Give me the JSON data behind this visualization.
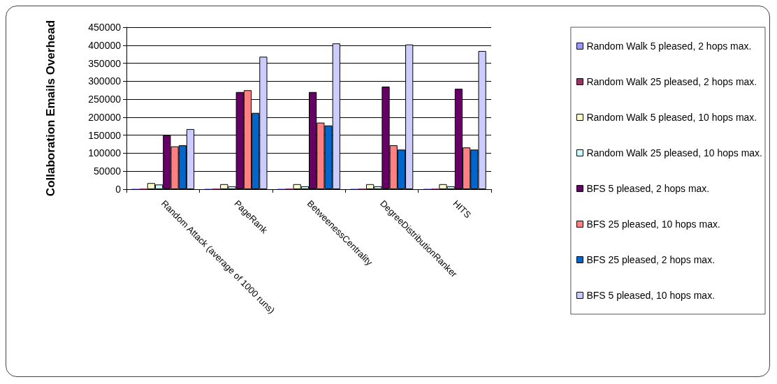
{
  "chart_data": {
    "type": "bar",
    "ylabel": "Collaboration Emails Overhead",
    "categories": [
      "Random Attack (average of 1000 runs)",
      "PageRank",
      "BetweenessCentrality",
      "DegreeDistributionRanker",
      "HITS"
    ],
    "series": [
      {
        "name": "Random Walk 5 pleased, 2 hops max.",
        "color": "#9999ff",
        "values": [
          2000,
          2000,
          2000,
          2000,
          2000
        ]
      },
      {
        "name": "Random Walk 25 pleased, 2 hops max.",
        "color": "#993366",
        "values": [
          2000,
          2000,
          2000,
          2000,
          2000
        ]
      },
      {
        "name": "Random Walk 5 pleased, 10 hops max.",
        "color": "#ffffcc",
        "values": [
          17000,
          14000,
          14000,
          14000,
          14000
        ]
      },
      {
        "name": "Random Walk 25 pleased, 10 hops max.",
        "color": "#ccffff",
        "values": [
          13000,
          8000,
          8000,
          8000,
          8000
        ]
      },
      {
        "name": "BFS 5 pleased, 2 hops max.",
        "color": "#660066",
        "values": [
          150000,
          270000,
          270000,
          285000,
          279000
        ]
      },
      {
        "name": "BFS 25 pleased, 10 hops max.",
        "color": "#ff8080",
        "values": [
          119000,
          275000,
          185000,
          122000,
          116000
        ]
      },
      {
        "name": "BFS 25 pleased, 2 hops max.",
        "color": "#0066cc",
        "values": [
          122000,
          212000,
          177000,
          110000,
          110000
        ]
      },
      {
        "name": "BFS 5 pleased, 10 hops max.",
        "color": "#ccccff",
        "values": [
          167000,
          368000,
          405000,
          402000,
          384000
        ]
      }
    ],
    "ylim": [
      0,
      450000
    ],
    "yticks": [
      0,
      50000,
      100000,
      150000,
      200000,
      250000,
      300000,
      350000,
      400000,
      450000
    ],
    "grid": "y",
    "legend": "right"
  }
}
